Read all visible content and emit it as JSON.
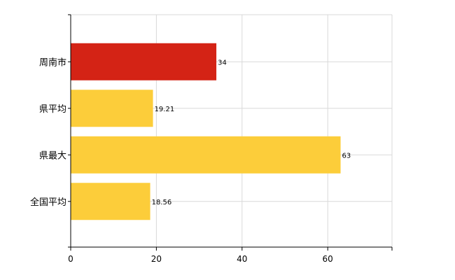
{
  "chart_data": {
    "type": "bar",
    "orientation": "horizontal",
    "categories": [
      "周南市",
      "県平均",
      "県最大",
      "全国平均"
    ],
    "values": [
      34,
      19.21,
      63,
      18.56
    ],
    "value_labels": [
      "34",
      "19.21",
      "63",
      "18.56"
    ],
    "xlim": [
      0,
      75
    ],
    "xticks": [
      0,
      20,
      40,
      60
    ],
    "xtick_labels": [
      "0",
      "20",
      "40",
      "60"
    ],
    "grid": true,
    "legend": "none",
    "title": "",
    "xlabel": "",
    "ylabel": ""
  },
  "colors": {
    "highlight": "#d42315",
    "default": "#fccd3a",
    "grid": "#d9d9d9",
    "axis": "#000000"
  }
}
